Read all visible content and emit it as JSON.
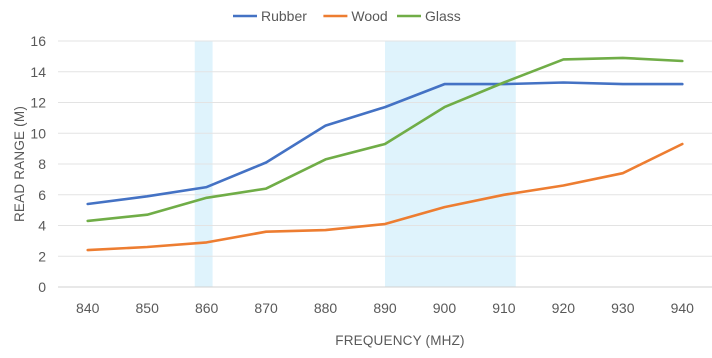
{
  "chart_data": {
    "type": "line",
    "xlabel": "FREQUENCY (MHZ)",
    "ylabel": "READ RANGE (M)",
    "x": [
      840,
      850,
      860,
      870,
      880,
      890,
      900,
      910,
      920,
      930,
      940
    ],
    "x_tick_labels": [
      "840",
      "850",
      "860",
      "870",
      "880",
      "890",
      "900",
      "910",
      "920",
      "930",
      "940"
    ],
    "y_ticks": [
      0,
      2,
      4,
      6,
      8,
      10,
      12,
      14,
      16
    ],
    "y_tick_labels": [
      "0",
      "2",
      "4",
      "6",
      "8",
      "10",
      "12",
      "14",
      "16"
    ],
    "ylim": [
      0,
      16
    ],
    "grid": true,
    "legend_position": "top",
    "shaded_bands": [
      {
        "x_start": 858,
        "x_end": 861,
        "color": "#dff3fc"
      },
      {
        "x_start": 890,
        "x_end": 912,
        "color": "#dff3fc"
      }
    ],
    "series": [
      {
        "name": "Rubber",
        "color": "#4472c4",
        "values": [
          5.4,
          5.9,
          6.5,
          8.1,
          10.5,
          11.7,
          13.2,
          13.2,
          13.3,
          13.2,
          13.2
        ]
      },
      {
        "name": "Wood",
        "color": "#ed7d31",
        "values": [
          2.4,
          2.6,
          2.9,
          3.6,
          3.7,
          4.1,
          5.2,
          6.0,
          6.6,
          7.4,
          9.3
        ]
      },
      {
        "name": "Glass",
        "color": "#70ad47",
        "values": [
          4.3,
          4.7,
          5.8,
          6.4,
          8.3,
          9.3,
          11.7,
          13.3,
          14.8,
          14.9,
          14.7
        ]
      }
    ]
  }
}
